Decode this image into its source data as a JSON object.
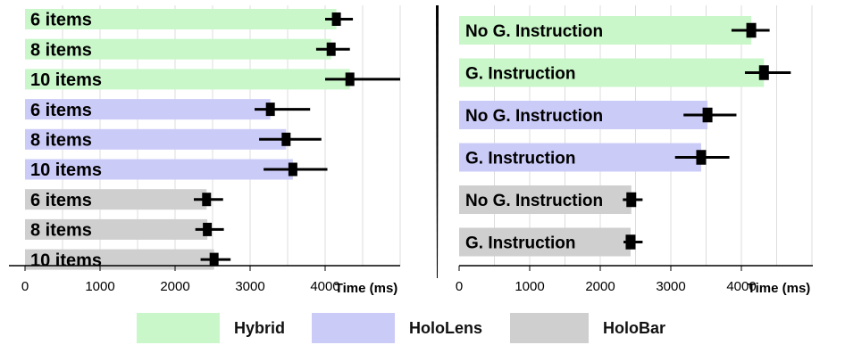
{
  "colors": {
    "Hybrid": "#c9f7c9",
    "HoloLens": "#cbcbf8",
    "HoloBar": "#cfcfcf"
  },
  "legend": [
    {
      "label": "Hybrid",
      "color": "#c9f7c9"
    },
    {
      "label": "HoloLens",
      "color": "#cbcbf8"
    },
    {
      "label": "HoloBar",
      "color": "#cfcfcf"
    }
  ],
  "chart_data": [
    {
      "type": "bar",
      "orientation": "horizontal",
      "xlabel": "Time (ms)",
      "xticks": [
        0,
        1000,
        2000,
        3000,
        4000
      ],
      "xlim": [
        0,
        5000
      ],
      "grid": true,
      "bars": [
        {
          "label": "6 items",
          "group": "Hybrid",
          "value": 4150,
          "err_low": 4000,
          "err_high": 4370
        },
        {
          "label": "8 items",
          "group": "Hybrid",
          "value": 4080,
          "err_low": 3880,
          "err_high": 4330
        },
        {
          "label": "10 items",
          "group": "Hybrid",
          "value": 4330,
          "err_low": 4000,
          "err_high": 5000
        },
        {
          "label": "6 items",
          "group": "HoloLens",
          "value": 3270,
          "err_low": 3060,
          "err_high": 3800
        },
        {
          "label": "8 items",
          "group": "HoloLens",
          "value": 3480,
          "err_low": 3120,
          "err_high": 3950
        },
        {
          "label": "10 items",
          "group": "HoloLens",
          "value": 3570,
          "err_low": 3180,
          "err_high": 4030
        },
        {
          "label": "6 items",
          "group": "HoloBar",
          "value": 2420,
          "err_low": 2250,
          "err_high": 2640
        },
        {
          "label": "8 items",
          "group": "HoloBar",
          "value": 2430,
          "err_low": 2270,
          "err_high": 2650
        },
        {
          "label": "10 items",
          "group": "HoloBar",
          "value": 2520,
          "err_low": 2340,
          "err_high": 2740
        }
      ]
    },
    {
      "type": "bar",
      "orientation": "horizontal",
      "xlabel": "Time (ms)",
      "xticks": [
        0,
        1000,
        2000,
        3000,
        4000
      ],
      "xlim": [
        0,
        5000
      ],
      "grid": true,
      "bars": [
        {
          "label": "No G. Instruction",
          "group": "Hybrid",
          "value": 4140,
          "err_low": 3860,
          "err_high": 4400
        },
        {
          "label": "G. Instruction",
          "group": "Hybrid",
          "value": 4320,
          "err_low": 4050,
          "err_high": 4700
        },
        {
          "label": "No G. Instruction",
          "group": "HoloLens",
          "value": 3520,
          "err_low": 3180,
          "err_high": 3930
        },
        {
          "label": "G. Instruction",
          "group": "HoloLens",
          "value": 3430,
          "err_low": 3060,
          "err_high": 3830
        },
        {
          "label": "No G. Instruction",
          "group": "HoloBar",
          "value": 2440,
          "err_low": 2320,
          "err_high": 2600
        },
        {
          "label": "G. Instruction",
          "group": "HoloBar",
          "value": 2430,
          "err_low": 2330,
          "err_high": 2600
        }
      ]
    }
  ]
}
